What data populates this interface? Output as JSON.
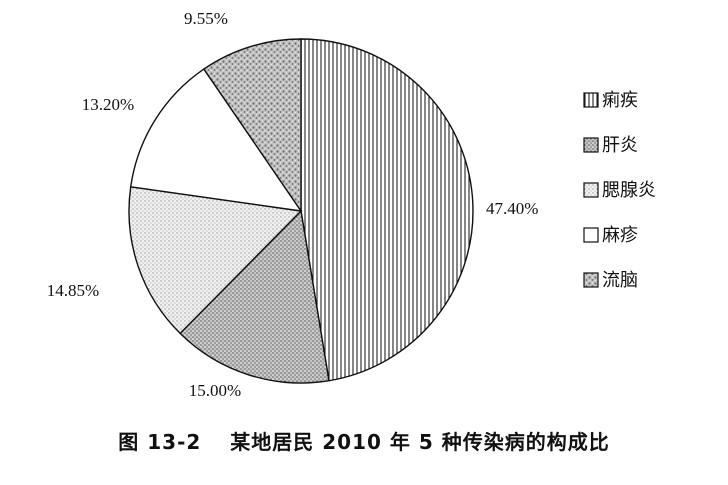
{
  "chart_data": {
    "type": "pie",
    "title": "",
    "caption": "图 13-2　 某地居民 2010 年 5 种传染病的构成比",
    "start_angle_deg": 0,
    "direction": "clockwise",
    "slices": [
      {
        "name": "痢疾",
        "value": 47.4,
        "label": "47.40%",
        "pattern": "vertical-lines"
      },
      {
        "name": "肝炎",
        "value": 15.0,
        "label": "15.00%",
        "pattern": "dense-dots"
      },
      {
        "name": "腮腺炎",
        "value": 14.85,
        "label": "14.85%",
        "pattern": "light-dots"
      },
      {
        "name": "麻疹",
        "value": 13.2,
        "label": "13.20%",
        "pattern": "blank"
      },
      {
        "name": "流脑",
        "value": 9.55,
        "label": "9.55%",
        "pattern": "mottled"
      }
    ],
    "legend_position": "right"
  }
}
